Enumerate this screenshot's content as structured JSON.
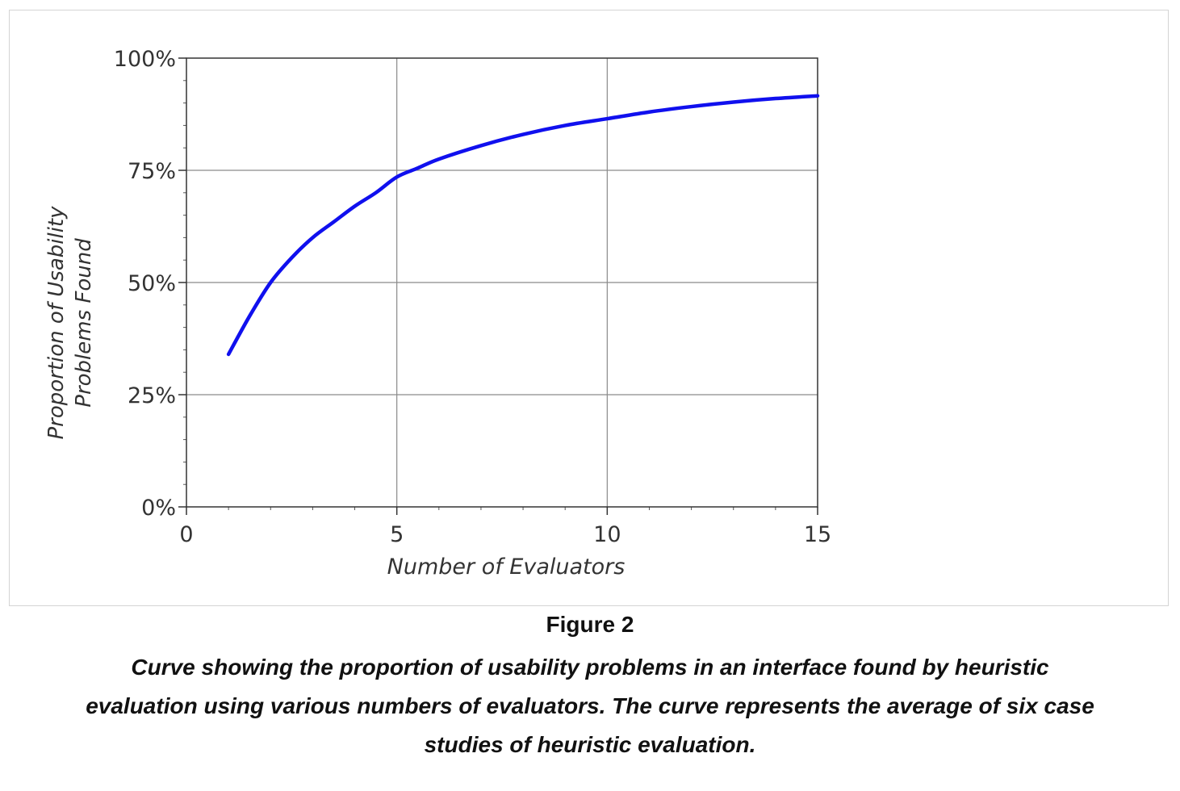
{
  "figure": {
    "number_label": "Figure 2",
    "caption_lines": [
      "Curve showing the proportion of usability problems in an interface found by heuristic",
      "evaluation using various numbers of evaluators. The curve represents the average of six case",
      "studies of heuristic evaluation."
    ]
  },
  "chart_data": {
    "type": "line",
    "title": "",
    "xlabel": "Number of Evaluators",
    "ylabel_lines": [
      "Proportion of Usability",
      "Problems Found"
    ],
    "xlim": [
      0,
      15
    ],
    "ylim": [
      0,
      100
    ],
    "x_ticks": [
      0,
      5,
      10,
      15
    ],
    "x_tick_labels": [
      "0",
      "5",
      "10",
      "15"
    ],
    "y_ticks": [
      0,
      25,
      50,
      75,
      100
    ],
    "y_tick_labels": [
      "0%",
      "25%",
      "50%",
      "75%",
      "100%"
    ],
    "grid": true,
    "legend": "none",
    "series_color": "#1010ee",
    "series": [
      {
        "x": [
          1,
          1.5,
          2,
          2.5,
          3,
          3.5,
          4,
          4.5,
          5,
          5.5,
          6,
          7,
          8,
          9,
          10,
          11,
          12,
          13,
          14,
          15
        ],
        "values": [
          34,
          42.5,
          50,
          55.5,
          60,
          63.5,
          67,
          70,
          73.5,
          75.5,
          77.5,
          80.5,
          83,
          85,
          86.5,
          88,
          89.2,
          90.2,
          91,
          91.6
        ]
      }
    ]
  }
}
